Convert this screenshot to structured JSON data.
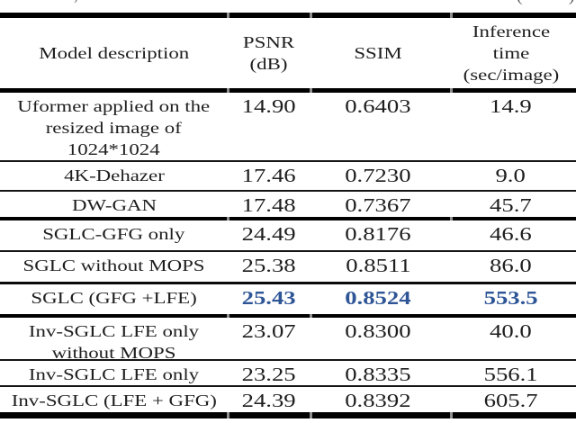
{
  "caption_fragments": {
    "comma": ",",
    "open_paren": "(",
    "close_paren": ")"
  },
  "colors": {
    "highlight_blue": "#2e5596",
    "text": "#1e1e1e",
    "rule": "#000000",
    "background": "#ffffff"
  },
  "table": {
    "header": {
      "model": "Model description",
      "psnr_line1": "PSNR",
      "psnr_line2": "(dB)",
      "ssim": "SSIM",
      "inference_line1": "Inference",
      "inference_line2": "time",
      "inference_line3": "(sec/image)"
    },
    "rows": [
      {
        "model_line1": "Uformer applied on the",
        "model_line2": "resized image of",
        "model_line3": "1024*1024",
        "psnr": "14.90",
        "ssim": "0.6403",
        "time": "14.9"
      },
      {
        "model": "4K-Dehazer",
        "psnr": "17.46",
        "ssim": "0.7230",
        "time": "9.0"
      },
      {
        "model": "DW-GAN",
        "psnr": "17.48",
        "ssim": "0.7367",
        "time": "45.7"
      },
      {
        "model": "SGLC-GFG only",
        "psnr": "24.49",
        "ssim": "0.8176",
        "time": "46.6"
      },
      {
        "model": "SGLC without MOPS",
        "psnr": "25.38",
        "ssim": "0.8511",
        "time": "86.0"
      },
      {
        "model": "SGLC (GFG +LFE)",
        "psnr": "25.43",
        "ssim": "0.8524",
        "time": "553.5",
        "highlighted": true
      },
      {
        "model_line1": "Inv-SGLC LFE only",
        "model_line2": "without MOPS",
        "psnr": "23.07",
        "ssim": "0.8300",
        "time": "40.0"
      },
      {
        "model": "Inv-SGLC LFE only",
        "psnr": "23.25",
        "ssim": "0.8335",
        "time": "556.1"
      },
      {
        "model": "Inv-SGLC (LFE + GFG)",
        "psnr": "24.39",
        "ssim": "0.8392",
        "time": "605.7"
      }
    ]
  }
}
